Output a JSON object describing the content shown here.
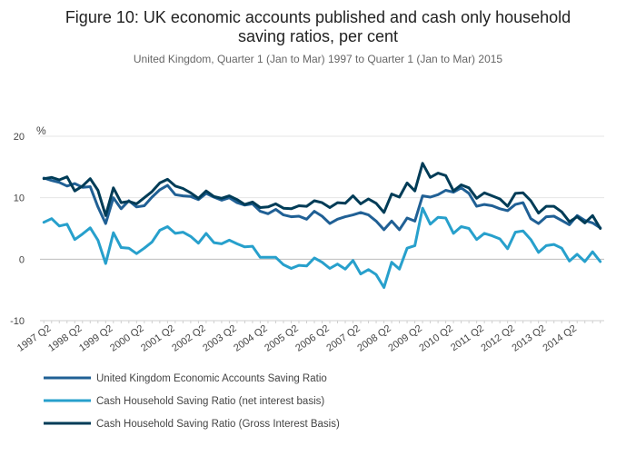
{
  "chart_data": {
    "type": "line",
    "title_line1": "Figure 10: UK economic accounts published and cash only household",
    "title_line2": "saving ratios, per cent",
    "subtitle": "United Kingdom, Quarter 1 (Jan to Mar) 1997 to Quarter 1 (Jan to Mar) 2015",
    "ylabel": "%",
    "ylim": [
      -10,
      20
    ],
    "yticks": [
      -10,
      0,
      10,
      20
    ],
    "xtick_labels": [
      "1997 Q2",
      "1998 Q2",
      "1999 Q2",
      "2000 Q2",
      "2001 Q2",
      "2002 Q2",
      "2003 Q2",
      "2004 Q2",
      "2005 Q2",
      "2006 Q2",
      "2007 Q2",
      "2008 Q2",
      "2009 Q2",
      "2010 Q2",
      "2011 Q2",
      "2012 Q2",
      "2013 Q2",
      "2014 Q2"
    ],
    "legend_position": "bottom-left",
    "grid": "horizontal",
    "series": [
      {
        "name": "United Kingdom Economic Accounts Saving Ratio",
        "color": "#206095",
        "values": [
          13.2,
          12.8,
          12.5,
          11.9,
          12.3,
          11.7,
          11.8,
          8.5,
          5.8,
          10.0,
          8.2,
          9.5,
          8.5,
          8.7,
          10.1,
          11.3,
          12.0,
          10.5,
          10.3,
          10.2,
          9.7,
          10.7,
          10.1,
          9.6,
          10.0,
          9.2,
          8.8,
          9.0,
          7.8,
          7.4,
          8.1,
          7.2,
          6.9,
          7.0,
          6.5,
          7.8,
          7.0,
          5.8,
          6.5,
          6.9,
          7.2,
          7.6,
          7.2,
          6.2,
          4.8,
          6.2,
          4.8,
          6.7,
          6.2,
          10.3,
          10.1,
          10.5,
          11.2,
          10.9,
          11.6,
          10.7,
          8.6,
          8.9,
          8.7,
          8.2,
          7.9,
          8.9,
          9.2,
          6.6,
          5.8,
          6.9,
          7.0,
          6.3,
          5.6,
          7.1,
          6.3,
          5.9,
          5.1
        ]
      },
      {
        "name": "Cash Household Saving Ratio (net interest basis)",
        "color": "#27a0cc",
        "values": [
          6.0,
          6.6,
          5.4,
          5.7,
          3.2,
          4.1,
          5.1,
          3.1,
          -0.7,
          4.3,
          1.9,
          1.8,
          0.9,
          1.8,
          2.8,
          4.7,
          5.3,
          4.2,
          4.4,
          3.7,
          2.6,
          4.2,
          2.7,
          2.5,
          3.1,
          2.5,
          2.0,
          2.1,
          0.3,
          0.3,
          0.3,
          -0.9,
          -1.5,
          -1.0,
          -1.1,
          0.2,
          -0.5,
          -1.5,
          -0.8,
          -1.6,
          -0.2,
          -2.4,
          -1.7,
          -2.5,
          -4.6,
          -0.5,
          -1.6,
          1.8,
          2.2,
          8.3,
          5.7,
          6.8,
          6.7,
          4.2,
          5.3,
          5.0,
          3.2,
          4.2,
          3.8,
          3.3,
          1.7,
          4.4,
          4.6,
          3.2,
          1.1,
          2.2,
          2.4,
          1.8,
          -0.3,
          0.8,
          -0.4,
          1.2,
          -0.4
        ]
      },
      {
        "name": "Cash Household Saving Ratio (Gross Interest Basis)",
        "color": "#003c57",
        "values": [
          13.1,
          13.3,
          12.9,
          13.4,
          11.1,
          11.9,
          13.1,
          11.2,
          7.1,
          11.6,
          9.2,
          9.4,
          9.0,
          10.0,
          11.0,
          12.4,
          13.0,
          11.9,
          11.5,
          10.8,
          9.9,
          11.1,
          10.2,
          9.9,
          10.3,
          9.7,
          8.9,
          9.3,
          8.4,
          8.5,
          9.0,
          8.3,
          8.2,
          8.7,
          8.6,
          9.5,
          9.2,
          8.4,
          9.2,
          9.1,
          10.3,
          9.0,
          9.8,
          9.1,
          7.6,
          10.6,
          10.1,
          12.4,
          11.1,
          15.6,
          13.3,
          14.0,
          13.6,
          11.1,
          12.1,
          11.6,
          9.9,
          10.8,
          10.3,
          9.8,
          8.6,
          10.7,
          10.8,
          9.5,
          7.5,
          8.6,
          8.6,
          7.7,
          6.1,
          6.9,
          5.9,
          7.1,
          5.0
        ]
      }
    ]
  }
}
